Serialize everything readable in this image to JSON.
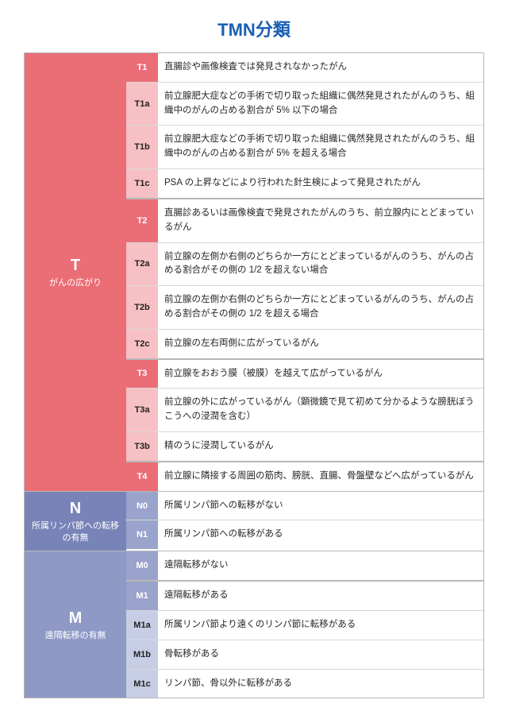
{
  "title": "TMN分類",
  "title_color": "#1a5fb4",
  "border_color": "#b8b8b8",
  "sections": [
    {
      "letter": "T",
      "sub": "がんの広がり",
      "cat_bg": "#eb6d76",
      "code_strong": "#eb6d76",
      "code_light": "#f7c0c4",
      "groups": [
        {
          "rows": [
            {
              "code": "T1",
              "strong": true,
              "desc": "直腸診や画像検査では発見されなかったがん"
            },
            {
              "code": "T1a",
              "strong": false,
              "desc": "前立腺肥大症などの手術で切り取った組織に偶然発見されたがんのうち、組織中のがんの占める割合が 5% 以下の場合"
            },
            {
              "code": "T1b",
              "strong": false,
              "desc": "前立腺肥大症などの手術で切り取った組織に偶然発見されたがんのうち、組織中のがんの占める割合が 5% を超える場合"
            },
            {
              "code": "T1c",
              "strong": false,
              "desc": "PSA の上昇などにより行われた針生検によって発見されたがん"
            }
          ]
        },
        {
          "rows": [
            {
              "code": "T2",
              "strong": true,
              "desc": "直腸診あるいは画像検査で発見されたがんのうち、前立腺内にとどまっているがん"
            },
            {
              "code": "T2a",
              "strong": false,
              "desc": "前立腺の左側か右側のどちらか一方にとどまっているがんのうち、がんの占める割合がその側の 1/2 を超えない場合"
            },
            {
              "code": "T2b",
              "strong": false,
              "desc": "前立腺の左側か右側のどちらか一方にとどまっているがんのうち、がんの占める割合がその側の 1/2 を超える場合"
            },
            {
              "code": "T2c",
              "strong": false,
              "desc": "前立腺の左右両側に広がっているがん"
            }
          ]
        },
        {
          "rows": [
            {
              "code": "T3",
              "strong": true,
              "desc": "前立腺をおおう膜（被膜）を越えて広がっているがん"
            },
            {
              "code": "T3a",
              "strong": false,
              "desc": "前立腺の外に広がっているがん（顕微鏡で見て初めて分かるような膀胱ぼうこうへの浸潤を含む）"
            },
            {
              "code": "T3b",
              "strong": false,
              "desc": "精のうに浸潤しているがん"
            }
          ]
        },
        {
          "rows": [
            {
              "code": "T4",
              "strong": true,
              "desc": "前立腺に隣接する周囲の筋肉、膀胱、直腸、骨盤壁などへ広がっているがん"
            }
          ]
        }
      ]
    },
    {
      "letter": "N",
      "sub": "所属リンパ節への転移の有無",
      "cat_bg": "#7883b8",
      "code_strong": "#9aa3cc",
      "code_light": "#c7cde5",
      "groups": [
        {
          "rows": [
            {
              "code": "N0",
              "strong": true,
              "desc": "所属リンパ節への転移がない"
            },
            {
              "code": "N1",
              "strong": true,
              "desc": "所属リンパ節への転移がある"
            }
          ]
        }
      ]
    },
    {
      "letter": "M",
      "sub": "遠隔転移の有無",
      "cat_bg": "#8e99c6",
      "code_strong": "#9aa3cc",
      "code_light": "#c7cde5",
      "groups": [
        {
          "rows": [
            {
              "code": "M0",
              "strong": true,
              "desc": "遠隔転移がない"
            }
          ]
        },
        {
          "rows": [
            {
              "code": "M1",
              "strong": true,
              "desc": "遠隔転移がある"
            },
            {
              "code": "M1a",
              "strong": false,
              "desc": "所属リンパ節より遠くのリンパ節に転移がある"
            },
            {
              "code": "M1b",
              "strong": false,
              "desc": "骨転移がある"
            },
            {
              "code": "M1c",
              "strong": false,
              "desc": "リンパ節、骨以外に転移がある"
            }
          ]
        }
      ]
    }
  ]
}
